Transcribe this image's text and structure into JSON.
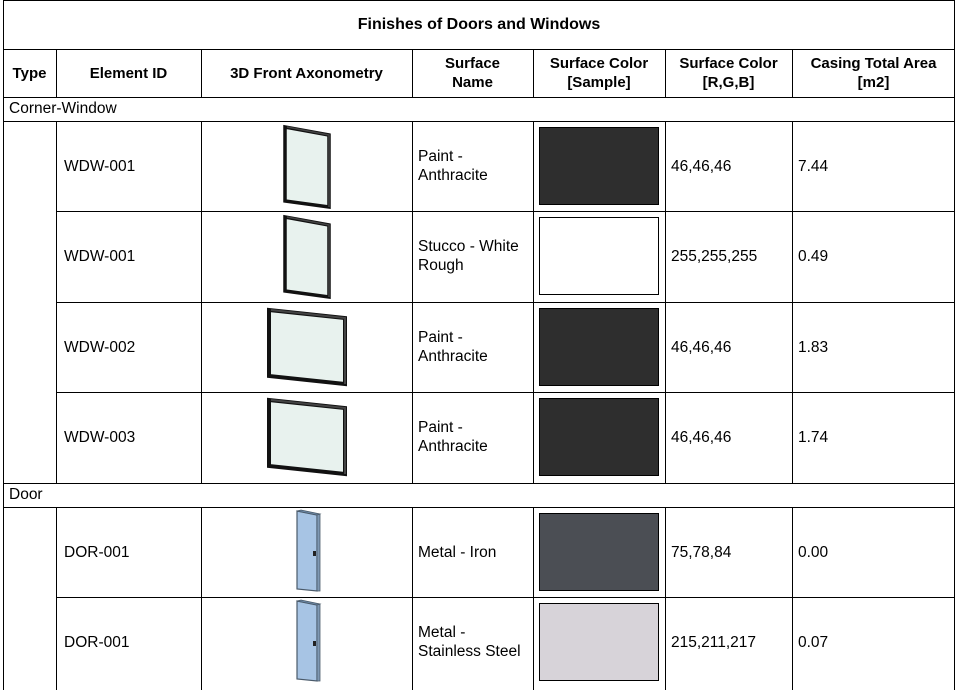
{
  "table": {
    "title": "Finishes of Doors and Windows",
    "headers": {
      "type": "Type",
      "element_id": "Element ID",
      "axonometry": "3D Front Axonometry",
      "surface_name": "Surface Name",
      "surface_color_sample": "Surface Color [Sample]",
      "surface_color_rgb": "Surface Color [R,G,B]",
      "casing_area": "Casing Total Area [m2]"
    },
    "groups": [
      {
        "name": "Corner-Window",
        "rows": [
          {
            "element_id": "WDW-001",
            "thumbnail": "window-tall-icon",
            "surface_name": "Paint - Anthracite",
            "rgb": "46,46,46",
            "swatch_color": "#2e2e2e",
            "area": "7.44"
          },
          {
            "element_id": "WDW-001",
            "thumbnail": "window-tall-icon",
            "surface_name": "Stucco - White Rough",
            "rgb": "255,255,255",
            "swatch_color": "#ffffff",
            "area": "0.49"
          },
          {
            "element_id": "WDW-002",
            "thumbnail": "window-square-icon",
            "surface_name": "Paint - Anthracite",
            "rgb": "46,46,46",
            "swatch_color": "#2e2e2e",
            "area": "1.83"
          },
          {
            "element_id": "WDW-003",
            "thumbnail": "window-square-icon",
            "surface_name": "Paint - Anthracite",
            "rgb": "46,46,46",
            "swatch_color": "#2e2e2e",
            "area": "1.74"
          }
        ]
      },
      {
        "name": "Door",
        "rows": [
          {
            "element_id": "DOR-001",
            "thumbnail": "door-icon",
            "surface_name": "Metal - Iron",
            "rgb": "75,78,84",
            "swatch_color": "#4b4e54",
            "area": "0.00"
          },
          {
            "element_id": "DOR-001",
            "thumbnail": "door-icon",
            "surface_name": "Metal - Stainless Steel",
            "rgb": "215,211,217",
            "swatch_color": "#d7d3d9",
            "area": "0.07"
          }
        ]
      }
    ]
  }
}
